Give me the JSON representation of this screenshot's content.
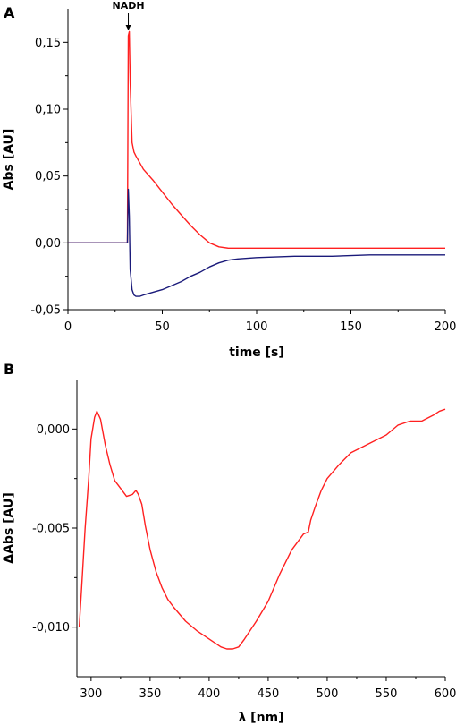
{
  "chart_data": [
    {
      "type": "line",
      "panel_label": "A",
      "xlabel": "time [s]",
      "ylabel": "Abs [AU]",
      "xlim": [
        0,
        200
      ],
      "ylim": [
        -0.05,
        0.175
      ],
      "x_ticks": [
        {
          "value": 0,
          "label": "0"
        },
        {
          "value": 50,
          "label": "50"
        },
        {
          "value": 100,
          "label": "100"
        },
        {
          "value": 150,
          "label": "150"
        },
        {
          "value": 200,
          "label": "200"
        }
      ],
      "y_ticks": [
        {
          "value": -0.05,
          "label": "-0,05"
        },
        {
          "value": 0.0,
          "label": "0,00"
        },
        {
          "value": 0.05,
          "label": "0,05"
        },
        {
          "value": 0.1,
          "label": "0,10"
        },
        {
          "value": 0.15,
          "label": "0,15"
        }
      ],
      "annotation": {
        "text": "NADH",
        "x": 32
      },
      "grid": false,
      "series": [
        {
          "color": "#ff2020",
          "x": [
            0,
            10,
            20,
            30,
            31.5,
            32,
            32.5,
            33,
            34,
            35,
            36,
            38,
            40,
            45,
            50,
            55,
            60,
            65,
            70,
            75,
            80,
            85,
            90,
            100,
            120,
            140,
            160,
            180,
            200
          ],
          "y": [
            0.0,
            0.0,
            0.0,
            0.0,
            0.0,
            0.155,
            0.158,
            0.12,
            0.075,
            0.068,
            0.065,
            0.06,
            0.055,
            0.047,
            0.038,
            0.029,
            0.021,
            0.013,
            0.006,
            0.0,
            -0.003,
            -0.004,
            -0.004,
            -0.004,
            -0.004,
            -0.004,
            -0.004,
            -0.004,
            -0.004
          ]
        },
        {
          "color": "#1a1a7a",
          "x": [
            0,
            10,
            20,
            30,
            31.5,
            32,
            32.5,
            33,
            34,
            35,
            36,
            38,
            40,
            45,
            50,
            55,
            60,
            65,
            70,
            75,
            80,
            85,
            90,
            100,
            120,
            140,
            160,
            180,
            200
          ],
          "y": [
            0.0,
            0.0,
            0.0,
            0.0,
            0.0,
            0.04,
            0.02,
            -0.02,
            -0.035,
            -0.039,
            -0.04,
            -0.04,
            -0.039,
            -0.037,
            -0.035,
            -0.032,
            -0.029,
            -0.025,
            -0.022,
            -0.018,
            -0.015,
            -0.013,
            -0.012,
            -0.011,
            -0.01,
            -0.01,
            -0.009,
            -0.009,
            -0.009
          ]
        }
      ]
    },
    {
      "type": "line",
      "panel_label": "B",
      "xlabel": "λ [nm]",
      "ylabel": "ΔAbs [AU]",
      "xlim": [
        288,
        600
      ],
      "ylim": [
        -0.0125,
        0.0025
      ],
      "x_ticks": [
        {
          "value": 300,
          "label": "300"
        },
        {
          "value": 350,
          "label": "350"
        },
        {
          "value": 400,
          "label": "400"
        },
        {
          "value": 450,
          "label": "450"
        },
        {
          "value": 500,
          "label": "500"
        },
        {
          "value": 550,
          "label": "550"
        },
        {
          "value": 600,
          "label": "600"
        }
      ],
      "y_ticks": [
        {
          "value": -0.01,
          "label": "-0,010"
        },
        {
          "value": -0.005,
          "label": "-0,005"
        },
        {
          "value": 0.0,
          "label": "0,000"
        }
      ],
      "grid": false,
      "series": [
        {
          "color": "#ff2020",
          "x": [
            290,
            292,
            295,
            298,
            300,
            303,
            305,
            308,
            312,
            316,
            320,
            325,
            330,
            335,
            338,
            340,
            343,
            346,
            350,
            355,
            360,
            365,
            370,
            380,
            390,
            400,
            410,
            415,
            420,
            425,
            430,
            440,
            450,
            460,
            470,
            480,
            484,
            486,
            490,
            495,
            500,
            510,
            520,
            530,
            540,
            550,
            560,
            570,
            580,
            590,
            595,
            600
          ],
          "y": [
            -0.01,
            -0.008,
            -0.005,
            -0.0025,
            -0.0005,
            0.0006,
            0.0009,
            0.0005,
            -0.0008,
            -0.0018,
            -0.0026,
            -0.003,
            -0.0034,
            -0.0033,
            -0.0031,
            -0.0033,
            -0.0038,
            -0.0049,
            -0.0061,
            -0.0072,
            -0.008,
            -0.0086,
            -0.009,
            -0.0097,
            -0.0102,
            -0.0106,
            -0.011,
            -0.0111,
            -0.0111,
            -0.011,
            -0.0106,
            -0.0097,
            -0.0087,
            -0.0073,
            -0.0061,
            -0.0053,
            -0.0052,
            -0.0046,
            -0.0039,
            -0.0031,
            -0.0025,
            -0.0018,
            -0.0012,
            -0.0009,
            -0.0006,
            -0.0003,
            0.0002,
            0.0004,
            0.0004,
            0.0007,
            0.0009,
            0.001
          ]
        }
      ]
    }
  ]
}
